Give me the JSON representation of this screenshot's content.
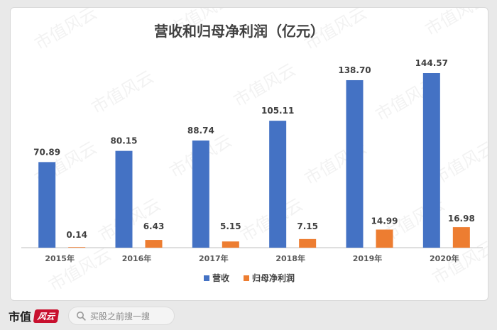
{
  "chart_data": {
    "type": "bar",
    "title": "营收和归母净利润（亿元）",
    "categories": [
      "2015年",
      "2016年",
      "2017年",
      "2018年",
      "2019年",
      "2020年"
    ],
    "series": [
      {
        "name": "营收",
        "color": "#4472c4",
        "values": [
          70.89,
          80.15,
          88.74,
          105.11,
          138.7,
          144.57
        ],
        "labels": [
          "70.89",
          "80.15",
          "88.74",
          "105.11",
          "138.70",
          "144.57"
        ]
      },
      {
        "name": "归母净利润",
        "color": "#ed7d31",
        "values": [
          0.14,
          6.43,
          5.15,
          7.15,
          14.99,
          16.98
        ],
        "labels": [
          "0.14",
          "6.43",
          "5.15",
          "7.15",
          "14.99",
          "16.98"
        ]
      }
    ],
    "ylim": [
      0,
      160
    ],
    "grid": false,
    "legend": "bottom"
  },
  "watermark": "市值风云",
  "footer": {
    "brand_text": "市值",
    "brand_mark_text": "风云",
    "search_placeholder": "买股之前搜一搜"
  }
}
